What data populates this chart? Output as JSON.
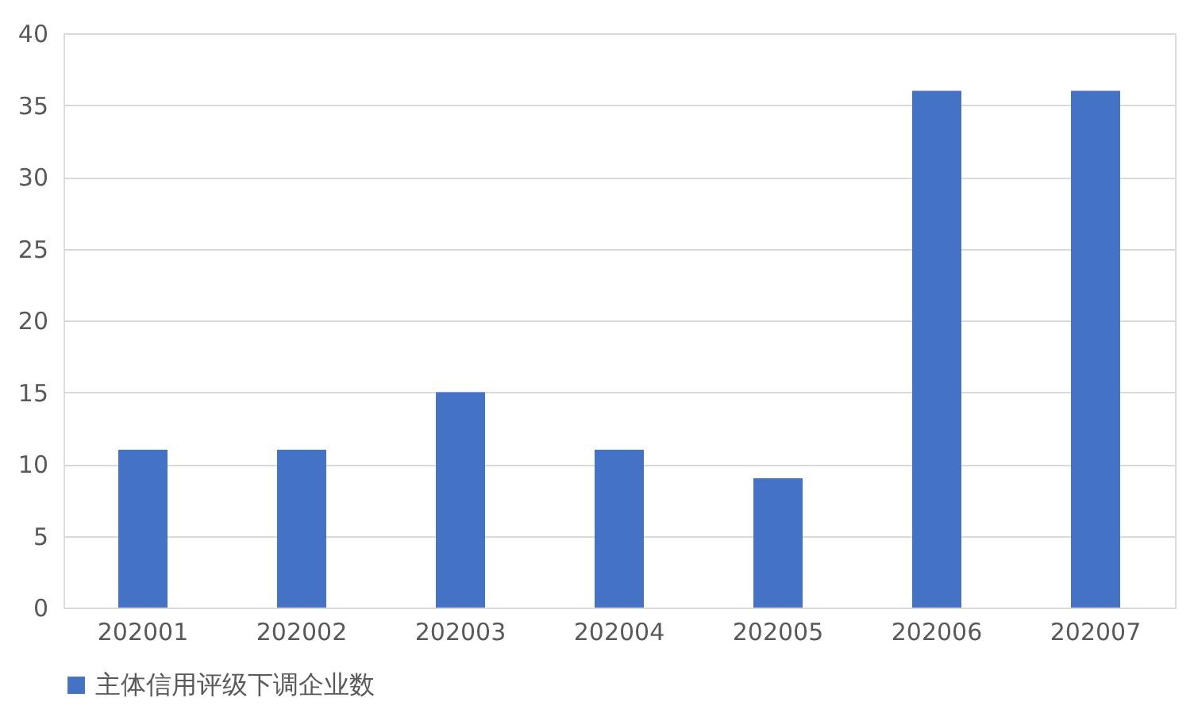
{
  "chart_data": {
    "type": "bar",
    "categories": [
      "202001",
      "202002",
      "202003",
      "202004",
      "202005",
      "202006",
      "202007"
    ],
    "series": [
      {
        "name": "主体信用评级下调企业数",
        "color": "#4472c4",
        "values": [
          11,
          11,
          15,
          11,
          9,
          36,
          36
        ]
      }
    ],
    "ylim": [
      0,
      40
    ],
    "yticks": [
      0,
      5,
      10,
      15,
      20,
      25,
      30,
      35,
      40
    ],
    "grid": "y",
    "legend": "bottom"
  }
}
